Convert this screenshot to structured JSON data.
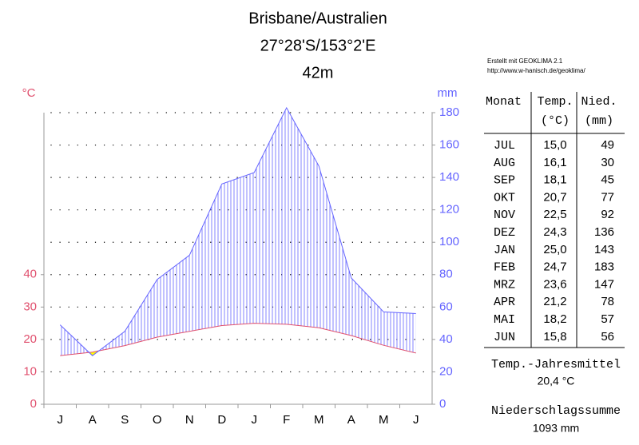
{
  "chart_data": {
    "type": "climate",
    "title": "Brisbane/Australien",
    "subtitle": "27°28'S/153°2'E",
    "elevation": "42m",
    "credit": "Erstellt mit GEOKLIMA 2.1",
    "credit_url": "http://www.w-hanisch.de/geoklima/",
    "ylabel": "°C",
    "y2label": "mm",
    "categories": [
      "J",
      "A",
      "S",
      "O",
      "N",
      "D",
      "J",
      "F",
      "M",
      "A",
      "M",
      "J"
    ],
    "series": [
      {
        "name": "Temp.",
        "unit": "(°C)",
        "color": "#e0506e",
        "values": [
          15.0,
          16.1,
          18.1,
          20.7,
          22.5,
          24.3,
          25.0,
          24.7,
          23.6,
          21.2,
          18.2,
          15.8
        ],
        "value_labels": [
          "15,0",
          "16,1",
          "18,1",
          "20,7",
          "22,5",
          "24,3",
          "25,0",
          "24,7",
          "23,6",
          "21,2",
          "18,2",
          "15,8"
        ]
      },
      {
        "name": "Nied.",
        "unit": "(mm)",
        "color": "#6464ff",
        "axis": "y2",
        "values": [
          49,
          30,
          45,
          77,
          92,
          136,
          143,
          183,
          147,
          78,
          57,
          56
        ]
      }
    ],
    "ylim": [
      0,
      90
    ],
    "yticks": [
      0,
      10,
      20,
      30,
      40
    ],
    "y2lim": [
      0,
      180
    ],
    "y2ticks": [
      0,
      20,
      40,
      60,
      80,
      100,
      120,
      140,
      160,
      180
    ],
    "grid": true,
    "humid_color": "#6464ff",
    "arid_color": "#ffff00",
    "table": {
      "month_header": "Monat",
      "months": [
        "JUL",
        "AUG",
        "SEP",
        "OKT",
        "NOV",
        "DEZ",
        "JAN",
        "FEB",
        "MRZ",
        "APR",
        "MAI",
        "JUN"
      ]
    },
    "annual_temp_label": "Temp.-Jahresmittel",
    "annual_temp": "20,4 °C",
    "annual_precip_label": "Niederschlagssumme",
    "annual_precip": "1093 mm"
  }
}
